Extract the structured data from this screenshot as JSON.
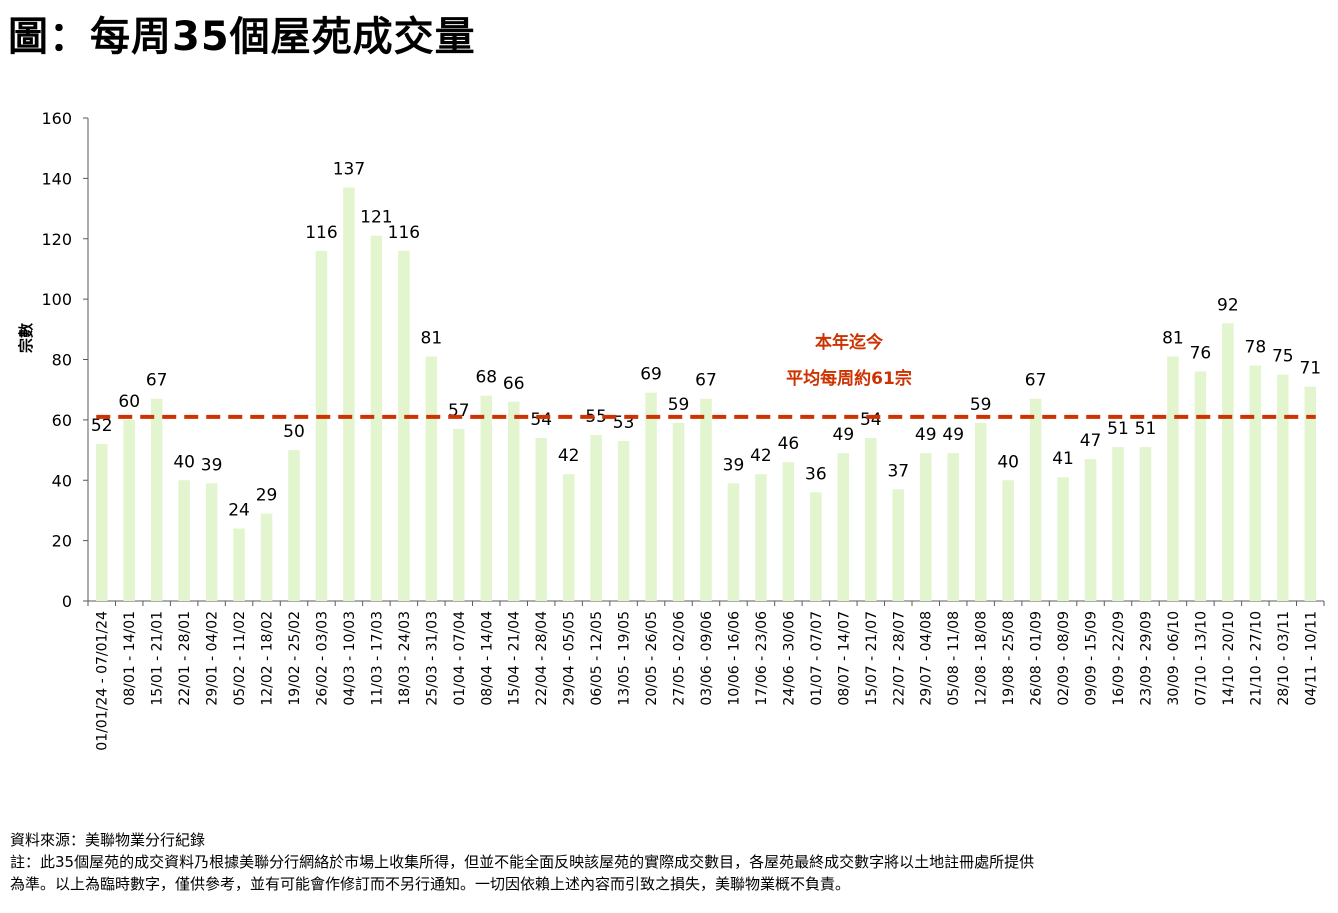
{
  "title": "圖：每周35個屋苑成交量",
  "chart_data": {
    "type": "bar",
    "title": "圖：每周35個屋苑成交量",
    "ylabel": "宗數",
    "xlabel": "",
    "ylim": [
      0,
      160
    ],
    "yticks": [
      0,
      20,
      40,
      60,
      80,
      100,
      120,
      140,
      160
    ],
    "categories": [
      "01/01/24 - 07/01/24",
      "08/01 - 14/01",
      "15/01 - 21/01",
      "22/01 - 28/01",
      "29/01 - 04/02",
      "05/02 - 11/02",
      "12/02 - 18/02",
      "19/02 - 25/02",
      "26/02 - 03/03",
      "04/03 - 10/03",
      "11/03 - 17/03",
      "18/03 - 24/03",
      "25/03 - 31/03",
      "01/04 - 07/04",
      "08/04 - 14/04",
      "15/04 - 21/04",
      "22/04 - 28/04",
      "29/04 - 05/05",
      "06/05 - 12/05",
      "13/05 - 19/05",
      "20/05 - 26/05",
      "27/05 - 02/06",
      "03/06 - 09/06",
      "10/06 - 16/06",
      "17/06 - 23/06",
      "24/06 - 30/06",
      "01/07 - 07/07",
      "08/07 - 14/07",
      "15/07 - 21/07",
      "22/07 - 28/07",
      "29/07 - 04/08",
      "05/08 - 11/08",
      "12/08 - 18/08",
      "19/08 - 25/08",
      "26/08 - 01/09",
      "02/09 - 08/09",
      "09/09 - 15/09",
      "16/09 - 22/09",
      "23/09 - 29/09",
      "30/09 - 06/10",
      "07/10 - 13/10",
      "14/10 - 20/10",
      "21/10 - 27/10",
      "28/10 - 03/11",
      "04/11 - 10/11"
    ],
    "values": [
      52,
      60,
      67,
      40,
      39,
      24,
      29,
      50,
      116,
      137,
      121,
      116,
      81,
      57,
      68,
      66,
      54,
      42,
      55,
      53,
      69,
      59,
      67,
      39,
      42,
      46,
      36,
      49,
      54,
      37,
      49,
      49,
      59,
      40,
      67,
      41,
      47,
      51,
      51,
      81,
      76,
      92,
      78,
      75,
      71
    ],
    "average": 61,
    "average_label_line1": "本年迄今",
    "average_label_line2": "平均每周約61宗",
    "colors": {
      "bar": "#e2f5cf",
      "average_line": "#cc3300",
      "average_label": "#cc3300",
      "axis": "#595959"
    }
  },
  "footnotes": {
    "source": "資料來源：美聯物業分行紀錄",
    "note_line1": "註：此35個屋苑的成交資料乃根據美聯分行網絡於市場上收集所得，但並不能全面反映該屋苑的實際成交數目，各屋苑最終成交數字將以土地註冊處所提供",
    "note_line2": "為準。以上為臨時數字，僅供參考，並有可能會作修訂而不另行通知。一切因依賴上述內容而引致之損失，美聯物業概不負責。"
  }
}
